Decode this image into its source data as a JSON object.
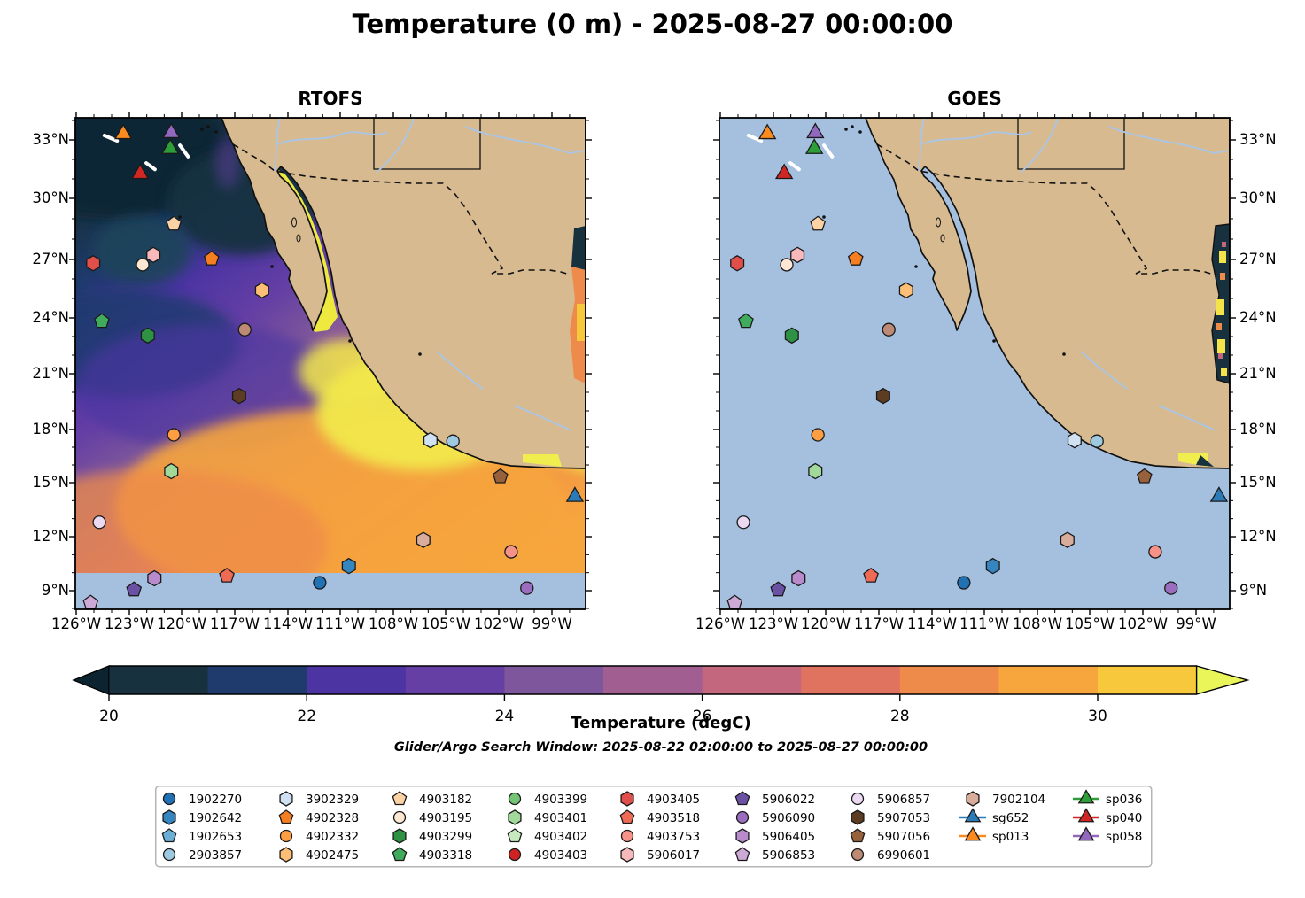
{
  "title": "Temperature (0 m) - 2025-08-27 00:00:00",
  "panels": [
    {
      "title": "RTOFS"
    },
    {
      "title": "GOES"
    }
  ],
  "axes": {
    "x_tick_labels": [
      "126°W",
      "123°W",
      "120°W",
      "117°W",
      "114°W",
      "111°W",
      "108°W",
      "105°W",
      "102°W",
      "99°W"
    ],
    "y_tick_labels": [
      "33°N",
      "30°N",
      "27°N",
      "24°N",
      "21°N",
      "18°N",
      "15°N",
      "12°N",
      "9°N"
    ]
  },
  "colorbar": {
    "label": "Temperature (degC)",
    "tick_labels": [
      "20",
      "22",
      "24",
      "26",
      "28",
      "30"
    ],
    "band_colors": [
      "#17313f",
      "#1f3a6d",
      "#4c35a2",
      "#653fa4",
      "#7d569b",
      "#a05e91",
      "#c3677e",
      "#e07260",
      "#ef8b4a",
      "#f7a63e",
      "#f7c83b"
    ],
    "under_color": "#0b2430",
    "over_color": "#e9f559"
  },
  "subtitle": "Glider/Argo Search Window: 2025-08-22 02:00:00 to 2025-08-27 00:00:00",
  "map_colors": {
    "land": "#d7ba90",
    "ocean_missing": "#a5bfdf",
    "coastline": "#111111",
    "river": "#a9c6e8",
    "gulf_warm": "#eee93f",
    "track": "#ffffff"
  },
  "legend": {
    "columns": [
      [
        "1902270",
        "1902642",
        "1902653",
        "2903857"
      ],
      [
        "3902329",
        "4902328",
        "4902332",
        "4902475"
      ],
      [
        "4903182",
        "4903195",
        "4903299",
        "4903318"
      ],
      [
        "4903399",
        "4903401",
        "4903402",
        "4903403"
      ],
      [
        "4903405",
        "4903518",
        "4903753",
        "5906017"
      ],
      [
        "5906022",
        "5906090",
        "5906405",
        "5906853"
      ],
      [
        "5906857",
        "5907053",
        "5907056",
        "6990601"
      ],
      [
        "7902104",
        "sg652",
        "sp013"
      ],
      [
        "sp036",
        "sp040",
        "sp058"
      ]
    ],
    "entries": {
      "1902270": {
        "shape": "circle",
        "color": "#2171b5"
      },
      "1902642": {
        "shape": "hexagon",
        "color": "#3585c0"
      },
      "1902653": {
        "shape": "pentagon",
        "color": "#6baed6"
      },
      "2903857": {
        "shape": "circle",
        "color": "#9ecae1"
      },
      "3902329": {
        "shape": "hexagon",
        "color": "#cfe1f2"
      },
      "4902328": {
        "shape": "pentagon",
        "color": "#f57e20"
      },
      "4902332": {
        "shape": "circle",
        "color": "#fd9e43"
      },
      "4902475": {
        "shape": "hexagon",
        "color": "#fdbf75"
      },
      "4903182": {
        "shape": "pentagon",
        "color": "#fdd3a6"
      },
      "4903195": {
        "shape": "circle",
        "color": "#fee8d3"
      },
      "4903299": {
        "shape": "hexagon",
        "color": "#2e9245"
      },
      "4903318": {
        "shape": "pentagon",
        "color": "#41ab5d"
      },
      "4903399": {
        "shape": "circle",
        "color": "#74c476"
      },
      "4903401": {
        "shape": "hexagon",
        "color": "#a1d99b"
      },
      "4903402": {
        "shape": "pentagon",
        "color": "#c7e9c0"
      },
      "4903403": {
        "shape": "circle",
        "color": "#cf2222"
      },
      "4903405": {
        "shape": "hexagon",
        "color": "#e14f4a"
      },
      "4903518": {
        "shape": "pentagon",
        "color": "#ef6a55"
      },
      "4903753": {
        "shape": "circle",
        "color": "#f69288"
      },
      "5906017": {
        "shape": "hexagon",
        "color": "#f8b9bb"
      },
      "5906022": {
        "shape": "pentagon",
        "color": "#6a51a3"
      },
      "5906090": {
        "shape": "circle",
        "color": "#9a6dbf"
      },
      "5906405": {
        "shape": "hexagon",
        "color": "#b98bcc"
      },
      "5906853": {
        "shape": "pentagon",
        "color": "#cdaad5"
      },
      "5906857": {
        "shape": "circle",
        "color": "#ead9f0"
      },
      "5907053": {
        "shape": "hexagon",
        "color": "#5e3c22"
      },
      "5907056": {
        "shape": "pentagon",
        "color": "#96613b"
      },
      "6990601": {
        "shape": "circle",
        "color": "#bd8a75"
      },
      "7902104": {
        "shape": "hexagon",
        "color": "#d9ac9c"
      },
      "sg652": {
        "shape": "triangle",
        "color": "#2b7bb9",
        "glider": true
      },
      "sp013": {
        "shape": "triangle",
        "color": "#fb8b1e",
        "glider": true
      },
      "sp036": {
        "shape": "triangle",
        "color": "#2e9e38",
        "glider": true
      },
      "sp040": {
        "shape": "triangle",
        "color": "#d12724",
        "glider": true
      },
      "sp058": {
        "shape": "triangle",
        "color": "#9168bd",
        "glider": true
      }
    }
  },
  "chart_data": {
    "type": "heatmap",
    "title": "Temperature (0 m) - 2025-08-27 00:00:00",
    "variable": "Sea surface temperature (degC)",
    "colorbar": {
      "label": "Temperature (degC)",
      "ticks": [
        20,
        22,
        24,
        26,
        28,
        30
      ],
      "band_edges": [
        20,
        21,
        22,
        23,
        24,
        25,
        26,
        27,
        28,
        29,
        30,
        31
      ],
      "extended_below": true,
      "extended_above": true
    },
    "x_axis": {
      "ticks_deg_west": [
        126,
        123,
        120,
        117,
        114,
        111,
        108,
        105,
        102,
        99
      ],
      "approx_range_deg_west": [
        126.1,
        97.0
      ]
    },
    "y_axis": {
      "ticks_deg_north": [
        33,
        30,
        27,
        24,
        21,
        18,
        15,
        12,
        9
      ],
      "approx_range_deg_north": [
        8.0,
        34.2
      ]
    },
    "panels": [
      {
        "name": "RTOFS",
        "description": "Model SST field: cold (~19-20 degC) dark water in NW corner grading through purples to warm 28-31 degC orange/yellow along the Mexican coast; Gulf of California ~31 degC; light-blue no-data band south of ~10N"
      },
      {
        "name": "GOES",
        "description": "Satellite SST mostly missing (flat light-blue ocean); small colorful data patches along western Gulf of Mexico edge and a yellow patch near 16.5N 103W"
      }
    ],
    "subtitle": "Glider/Argo Search Window: 2025-08-22 02:00:00 to 2025-08-27 00:00:00",
    "platforms_plotted": [
      {
        "id": "sp013",
        "type": "glider",
        "lon": -123.3,
        "lat": 33.3,
        "fx": 0.094,
        "fy": 0.033
      },
      {
        "id": "sp058",
        "type": "glider",
        "lon": -120.6,
        "lat": 33.4,
        "fx": 0.188,
        "fy": 0.031
      },
      {
        "id": "sp036",
        "type": "glider",
        "lon": -120.7,
        "lat": 32.5,
        "fx": 0.186,
        "fy": 0.063
      },
      {
        "id": "sp040",
        "type": "glider",
        "lon": -122.4,
        "lat": 31.2,
        "fx": 0.127,
        "fy": 0.114
      },
      {
        "id": "4903182",
        "type": "argo",
        "lon": -120.5,
        "lat": 28.5,
        "fx": 0.193,
        "fy": 0.216
      },
      {
        "id": "5906017",
        "type": "argo",
        "lon": -121.6,
        "lat": 26.9,
        "fx": 0.153,
        "fy": 0.279
      },
      {
        "id": "4903195",
        "type": "argo",
        "lon": -122.2,
        "lat": 26.3,
        "fx": 0.132,
        "fy": 0.299
      },
      {
        "id": "4902328",
        "type": "argo",
        "lon": -118.3,
        "lat": 26.7,
        "fx": 0.267,
        "fy": 0.287
      },
      {
        "id": "4903405",
        "type": "argo",
        "lon": -125.0,
        "lat": 26.4,
        "fx": 0.035,
        "fy": 0.296
      },
      {
        "id": "4902475",
        "type": "argo",
        "lon": -115.4,
        "lat": 25.0,
        "fx": 0.366,
        "fy": 0.351
      },
      {
        "id": "4903318",
        "type": "argo",
        "lon": -124.5,
        "lat": 23.3,
        "fx": 0.052,
        "fy": 0.414
      },
      {
        "id": "4903299",
        "type": "argo",
        "lon": -121.9,
        "lat": 22.6,
        "fx": 0.142,
        "fy": 0.443
      },
      {
        "id": "6990601",
        "type": "argo",
        "lon": -116.5,
        "lat": 22.9,
        "fx": 0.332,
        "fy": 0.431
      },
      {
        "id": "5907053",
        "type": "argo",
        "lon": -116.8,
        "lat": 19.4,
        "fx": 0.321,
        "fy": 0.566
      },
      {
        "id": "4902332",
        "type": "argo",
        "lon": -120.5,
        "lat": 17.3,
        "fx": 0.193,
        "fy": 0.645
      },
      {
        "id": "4903401",
        "type": "argo",
        "lon": -120.6,
        "lat": 15.4,
        "fx": 0.188,
        "fy": 0.719
      },
      {
        "id": "5906857",
        "type": "argo",
        "lon": -124.7,
        "lat": 12.6,
        "fx": 0.047,
        "fy": 0.823
      },
      {
        "id": "5906405",
        "type": "argo",
        "lon": -121.6,
        "lat": 9.7,
        "fx": 0.155,
        "fy": 0.937
      },
      {
        "id": "5906022",
        "type": "argo",
        "lon": -122.7,
        "lat": 9.0,
        "fx": 0.115,
        "fy": 0.96
      },
      {
        "id": "5906853",
        "type": "argo",
        "lon": -125.2,
        "lat": 8.3,
        "fx": 0.03,
        "fy": 0.987
      },
      {
        "id": "4903518",
        "type": "argo",
        "lon": -117.5,
        "lat": 9.8,
        "fx": 0.297,
        "fy": 0.932
      },
      {
        "id": "1902642",
        "type": "argo",
        "lon": -110.5,
        "lat": 10.3,
        "fx": 0.536,
        "fy": 0.912
      },
      {
        "id": "1902270",
        "type": "argo",
        "lon": -112.2,
        "lat": 9.4,
        "fx": 0.479,
        "fy": 0.946
      },
      {
        "id": "3902329",
        "type": "argo",
        "lon": -105.9,
        "lat": 17.0,
        "fx": 0.696,
        "fy": 0.656
      },
      {
        "id": "2903857",
        "type": "argo",
        "lon": -104.6,
        "lat": 17.0,
        "fx": 0.74,
        "fy": 0.658
      },
      {
        "id": "5907056",
        "type": "argo",
        "lon": -101.9,
        "lat": 15.1,
        "fx": 0.833,
        "fy": 0.73
      },
      {
        "id": "sg652",
        "type": "glider",
        "lon": -97.7,
        "lat": 14.0,
        "fx": 0.979,
        "fy": 0.771
      },
      {
        "id": "7902104",
        "type": "argo",
        "lon": -106.3,
        "lat": 11.7,
        "fx": 0.682,
        "fy": 0.859
      },
      {
        "id": "4903753",
        "type": "argo",
        "lon": -101.3,
        "lat": 11.1,
        "fx": 0.854,
        "fy": 0.883
      },
      {
        "id": "5906090",
        "type": "argo",
        "lon": -100.4,
        "lat": 9.2,
        "fx": 0.885,
        "fy": 0.957
      }
    ],
    "glider_tracks_fx_fy": [
      [
        0.057,
        0.036,
        0.082,
        0.047
      ],
      [
        0.205,
        0.056,
        0.221,
        0.079
      ],
      [
        0.139,
        0.092,
        0.156,
        0.105
      ]
    ]
  }
}
